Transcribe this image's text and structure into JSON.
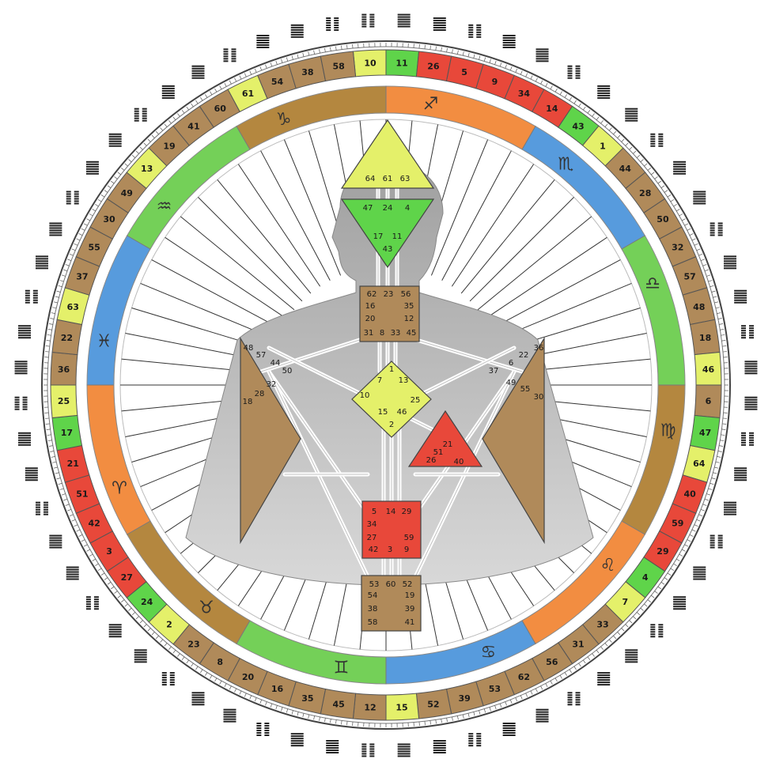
{
  "wheel": {
    "gates_ring": [
      {
        "g": "10",
        "c": "lime"
      },
      {
        "g": "11",
        "c": "green"
      },
      {
        "g": "26",
        "c": "red"
      },
      {
        "g": "5",
        "c": "red"
      },
      {
        "g": "9",
        "c": "red"
      },
      {
        "g": "34",
        "c": "red"
      },
      {
        "g": "14",
        "c": "red"
      },
      {
        "g": "43",
        "c": "green"
      },
      {
        "g": "1",
        "c": "lime"
      },
      {
        "g": "44",
        "c": "tan"
      },
      {
        "g": "28",
        "c": "tan"
      },
      {
        "g": "50",
        "c": "tan"
      },
      {
        "g": "32",
        "c": "tan"
      },
      {
        "g": "57",
        "c": "tan"
      },
      {
        "g": "48",
        "c": "tan"
      },
      {
        "g": "18",
        "c": "tan"
      },
      {
        "g": "46",
        "c": "lime"
      },
      {
        "g": "6",
        "c": "tan"
      },
      {
        "g": "47",
        "c": "green"
      },
      {
        "g": "64",
        "c": "lime"
      },
      {
        "g": "40",
        "c": "red"
      },
      {
        "g": "59",
        "c": "red"
      },
      {
        "g": "29",
        "c": "red"
      },
      {
        "g": "4",
        "c": "green"
      },
      {
        "g": "7",
        "c": "lime"
      },
      {
        "g": "33",
        "c": "tan"
      },
      {
        "g": "31",
        "c": "tan"
      },
      {
        "g": "56",
        "c": "tan"
      },
      {
        "g": "62",
        "c": "tan"
      },
      {
        "g": "53",
        "c": "tan"
      },
      {
        "g": "39",
        "c": "tan"
      },
      {
        "g": "52",
        "c": "tan"
      },
      {
        "g": "15",
        "c": "lime"
      },
      {
        "g": "12",
        "c": "tan"
      },
      {
        "g": "45",
        "c": "tan"
      },
      {
        "g": "35",
        "c": "tan"
      },
      {
        "g": "16",
        "c": "tan"
      },
      {
        "g": "20",
        "c": "tan"
      },
      {
        "g": "8",
        "c": "tan"
      },
      {
        "g": "23",
        "c": "tan"
      },
      {
        "g": "2",
        "c": "lime"
      },
      {
        "g": "24",
        "c": "green"
      },
      {
        "g": "27",
        "c": "red"
      },
      {
        "g": "3",
        "c": "red"
      },
      {
        "g": "42",
        "c": "red"
      },
      {
        "g": "51",
        "c": "red"
      },
      {
        "g": "21",
        "c": "red"
      },
      {
        "g": "17",
        "c": "green"
      },
      {
        "g": "25",
        "c": "lime"
      },
      {
        "g": "36",
        "c": "tan"
      },
      {
        "g": "22",
        "c": "tan"
      },
      {
        "g": "63",
        "c": "lime"
      },
      {
        "g": "37",
        "c": "tan"
      },
      {
        "g": "55",
        "c": "tan"
      },
      {
        "g": "30",
        "c": "tan"
      },
      {
        "g": "49",
        "c": "tan"
      },
      {
        "g": "13",
        "c": "lime"
      },
      {
        "g": "19",
        "c": "tan"
      },
      {
        "g": "41",
        "c": "tan"
      },
      {
        "g": "60",
        "c": "tan"
      },
      {
        "g": "61",
        "c": "lime"
      },
      {
        "g": "54",
        "c": "tan"
      },
      {
        "g": "38",
        "c": "tan"
      },
      {
        "g": "58",
        "c": "tan"
      }
    ],
    "zodiac": [
      {
        "sym": "♐",
        "c": "#f07a20"
      },
      {
        "sym": "♏",
        "c": "#3a8ad8"
      },
      {
        "sym": "♎",
        "c": "#5cc83c"
      },
      {
        "sym": "♍",
        "c": "#a8731e"
      },
      {
        "sym": "♌",
        "c": "#f07a20"
      },
      {
        "sym": "♋",
        "c": "#3a8ad8"
      },
      {
        "sym": "♊",
        "c": "#5cc83c"
      },
      {
        "sym": "♉",
        "c": "#a8731e"
      },
      {
        "sym": "♈",
        "c": "#f07a20"
      },
      {
        "sym": "♓",
        "c": "#3a8ad8"
      },
      {
        "sym": "♒",
        "c": "#5cc83c"
      },
      {
        "sym": "♑",
        "c": "#a8731e"
      }
    ],
    "colors": {
      "red": "#e8483a",
      "green": "#5fd44a",
      "lime": "#e4f06a",
      "tan": "#b08a5a",
      "ring_bg": "#d9c9a8"
    }
  },
  "centers": {
    "head": {
      "gates": [
        "64",
        "61",
        "63"
      ]
    },
    "ajna": {
      "gates": [
        "47",
        "24",
        "4",
        "17",
        "11",
        "43"
      ]
    },
    "throat": {
      "gates": [
        "62",
        "23",
        "56",
        "16",
        "35",
        "20",
        "12",
        "31",
        "8",
        "33",
        "45"
      ]
    },
    "g": {
      "gates": [
        "1",
        "7",
        "13",
        "10",
        "25",
        "15",
        "46",
        "2"
      ]
    },
    "heart": {
      "gates": [
        "21",
        "51",
        "26",
        "40"
      ]
    },
    "spleen": {
      "gates": [
        "48",
        "57",
        "44",
        "50",
        "32",
        "28",
        "18"
      ]
    },
    "solar": {
      "gates": [
        "36",
        "22",
        "6",
        "37",
        "49",
        "55",
        "30"
      ]
    },
    "sacral": {
      "gates": [
        "5",
        "14",
        "29",
        "34",
        "27",
        "59",
        "42",
        "3",
        "9"
      ]
    },
    "root": {
      "gates": [
        "53",
        "60",
        "52",
        "54",
        "19",
        "38",
        "39",
        "58",
        "41"
      ]
    }
  }
}
